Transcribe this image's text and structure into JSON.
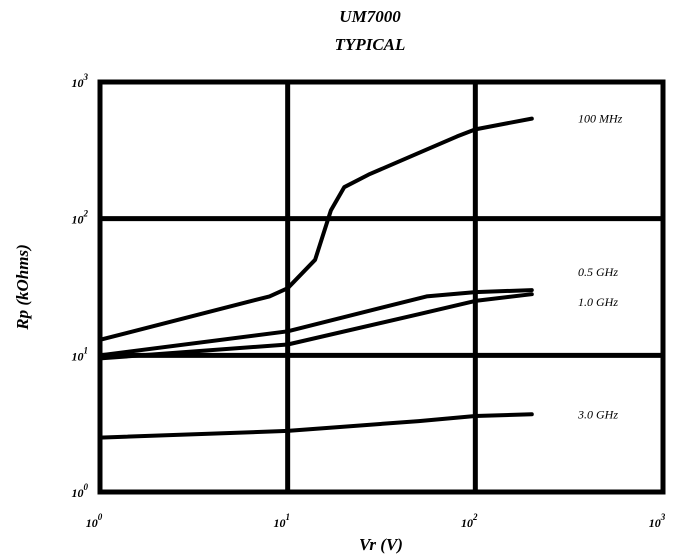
{
  "chart_data": {
    "type": "line",
    "title": "UM7000",
    "subtitle": "TYPICAL",
    "xlabel": "Vr (V)",
    "ylabel": "Rp (kOhms)",
    "x_scale": "log",
    "y_scale": "log",
    "xlim": [
      1,
      1000
    ],
    "ylim": [
      1,
      1000
    ],
    "grid": true,
    "x_ticks": [
      {
        "base": "10",
        "exp": "0"
      },
      {
        "base": "10",
        "exp": "1"
      },
      {
        "base": "10",
        "exp": "2"
      },
      {
        "base": "10",
        "exp": "3"
      }
    ],
    "y_ticks": [
      {
        "base": "10",
        "exp": "0"
      },
      {
        "base": "10",
        "exp": "1"
      },
      {
        "base": "10",
        "exp": "2"
      },
      {
        "base": "10",
        "exp": "3"
      }
    ],
    "series": [
      {
        "name": "100 MHz",
        "x": [
          1,
          8,
          10,
          14,
          17,
          20,
          27,
          55,
          80,
          100,
          200
        ],
        "y": [
          13,
          27,
          31,
          50,
          115,
          170,
          210,
          320,
          400,
          450,
          540
        ]
      },
      {
        "name": "0.5 GHz",
        "x": [
          1,
          10,
          55,
          100,
          200
        ],
        "y": [
          10,
          15,
          27,
          29,
          30
        ]
      },
      {
        "name": "1.0 GHz",
        "x": [
          1,
          10,
          50,
          100,
          200
        ],
        "y": [
          9.5,
          12,
          20,
          25,
          28
        ]
      },
      {
        "name": "3.0 GHz",
        "x": [
          1,
          10,
          50,
          100,
          200
        ],
        "y": [
          2.5,
          2.8,
          3.3,
          3.6,
          3.7
        ]
      }
    ]
  }
}
